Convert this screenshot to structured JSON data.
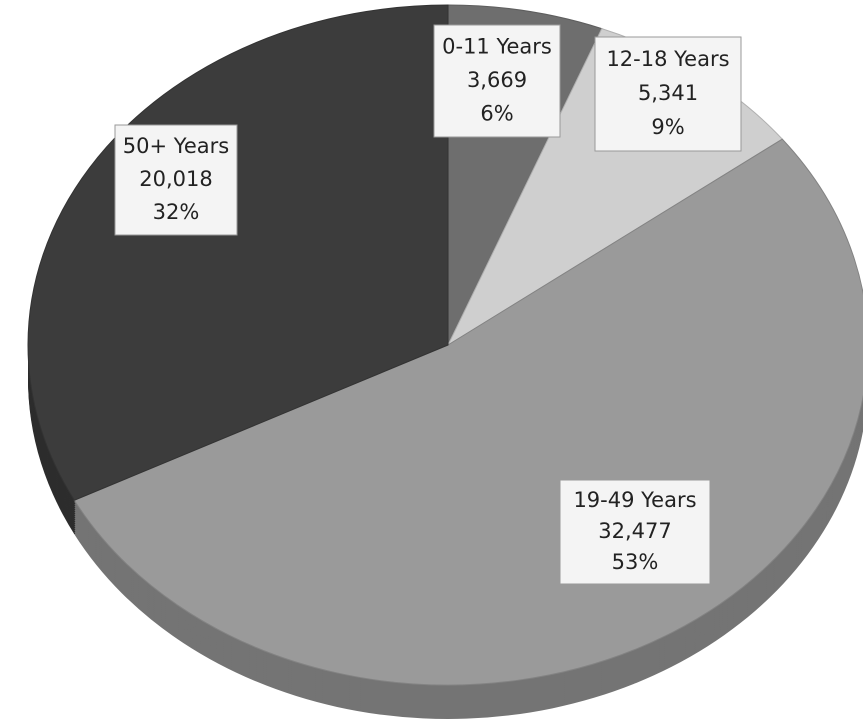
{
  "chart_data": {
    "type": "pie",
    "categories": [
      "0-11 Years",
      "12-18 Years",
      "19-49 Years",
      "50+ Years"
    ],
    "values": [
      3669,
      5341,
      32477,
      20018
    ],
    "value_labels": [
      "3,669",
      "5,341",
      "32,477",
      "20,018"
    ],
    "percents": [
      6,
      9,
      53,
      32
    ],
    "percent_labels": [
      "6%",
      "9%",
      "53%",
      "32%"
    ],
    "colors": [
      "#6e6e6e",
      "#cfcfcf",
      "#9a9a9a",
      "#3c3c3c"
    ]
  }
}
